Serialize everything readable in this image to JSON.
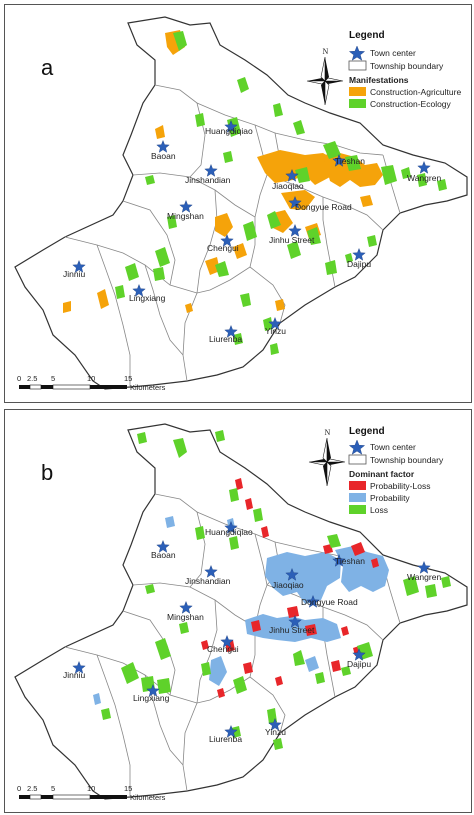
{
  "panel_a": {
    "letter": "a",
    "legend": {
      "title": "Legend",
      "town_center": "Town center",
      "township_boundary": "Township boundary",
      "section": "Manifestations",
      "items": [
        {
          "label": "Construction-Agriculture",
          "color": "#f5a30a"
        },
        {
          "label": "Construction-Ecology",
          "color": "#5fd22a"
        }
      ]
    }
  },
  "panel_b": {
    "letter": "b",
    "legend": {
      "title": "Legend",
      "town_center": "Town center",
      "township_boundary": "Township boundary",
      "section": "Dominant factor",
      "items": [
        {
          "label": "Probability-Loss",
          "color": "#e8262a"
        },
        {
          "label": "Probability",
          "color": "#7fb2e5"
        },
        {
          "label": "Loss",
          "color": "#5fd22a"
        }
      ]
    }
  },
  "towns": [
    "Baoan",
    "Huangdiqiao",
    "Jinshandian",
    "Mingshan",
    "Jinniu",
    "Lingxiang",
    "Chengui",
    "Liurenba",
    "Yinzu",
    "Jinhu Street",
    "Dongyue Road",
    "Jiaoqiao",
    "Tieshan",
    "Wangren",
    "Dajipu"
  ],
  "north_label": "N",
  "scale": {
    "ticks": [
      "0",
      "2.5",
      "5",
      "10",
      "15"
    ],
    "unit": "Kilometers"
  },
  "colors": {
    "star": "#2b5fb8",
    "boundary": "#888888",
    "outline": "#333333"
  }
}
